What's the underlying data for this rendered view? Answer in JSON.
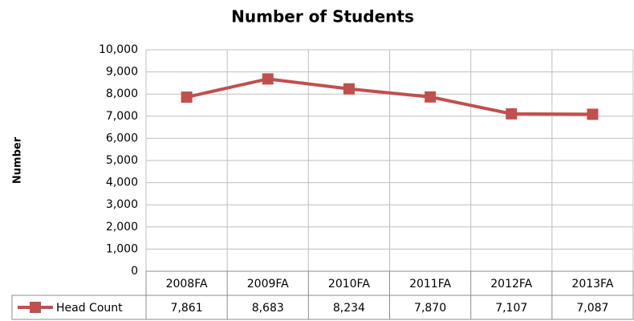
{
  "chart_data": {
    "type": "line",
    "title": "Number of Students",
    "y_label": "Number",
    "categories": [
      "2008FA",
      "2009FA",
      "2010FA",
      "2011FA",
      "2012FA",
      "2013FA"
    ],
    "series": [
      {
        "name": "Head Count",
        "color": "#c0504d",
        "values": [
          7861,
          8683,
          8234,
          7870,
          7107,
          7087
        ],
        "value_labels": [
          "7,861",
          "8,683",
          "8,234",
          "7,870",
          "7,107",
          "7,087"
        ]
      }
    ],
    "ylim": [
      0,
      10000
    ],
    "yticks": [
      0,
      {
        "value": 1000,
        "label": "1,000"
      },
      {
        "value": 2000,
        "label": "2,000"
      },
      {
        "value": 3000,
        "label": "3,000"
      },
      {
        "value": 4000,
        "label": "4,000"
      },
      {
        "value": 5000,
        "label": "5,000"
      },
      {
        "value": 6000,
        "label": "6,000"
      },
      {
        "value": 7000,
        "label": "7,000"
      },
      {
        "value": 8000,
        "label": "8,000"
      },
      {
        "value": 9000,
        "label": "9,000"
      },
      {
        "value": 10000,
        "label": "10,000"
      }
    ],
    "grid": true
  }
}
